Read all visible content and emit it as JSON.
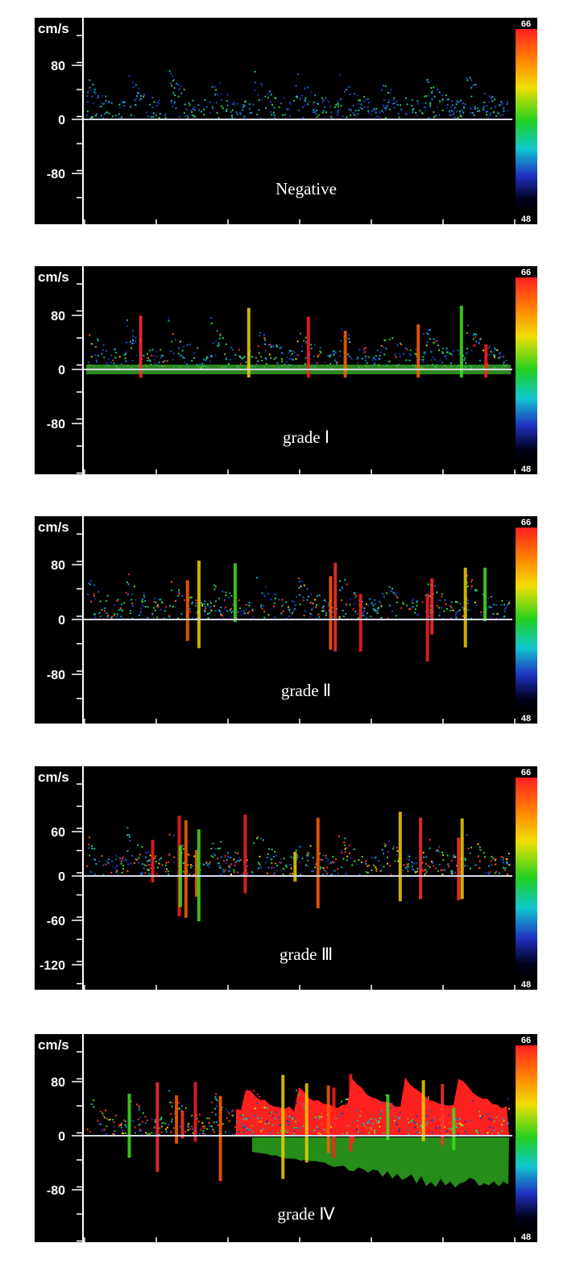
{
  "panels": [
    {
      "unit": "cm/s",
      "yticks": [
        80,
        0,
        -80
      ],
      "label": "Negative",
      "colorbar": [
        "66",
        "48"
      ]
    },
    {
      "unit": "cm/s",
      "yticks": [
        80,
        0,
        -80
      ],
      "label": "grade Ⅰ",
      "colorbar": [
        "66",
        "48"
      ]
    },
    {
      "unit": "cm/s",
      "yticks": [
        80,
        0,
        -80
      ],
      "label": "grade Ⅱ",
      "colorbar": [
        "66",
        "48"
      ]
    },
    {
      "unit": "cm/s",
      "yticks": [
        60,
        0,
        -60,
        -120
      ],
      "label": "grade Ⅲ",
      "colorbar": [
        "66",
        "48"
      ]
    },
    {
      "unit": "cm/s",
      "yticks": [
        80,
        0,
        -80
      ],
      "label": "grade Ⅳ",
      "colorbar": [
        "66",
        "48"
      ]
    }
  ]
}
